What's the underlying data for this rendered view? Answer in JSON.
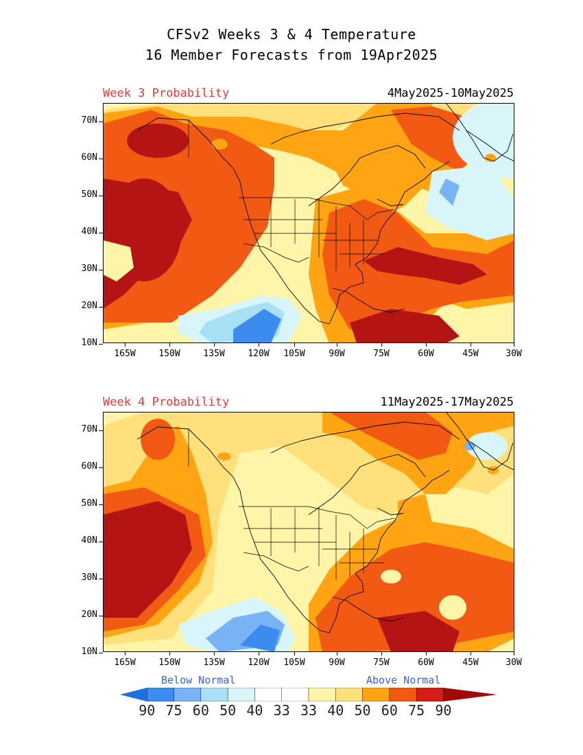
{
  "title": {
    "line1": "CFSv2 Weeks 3 & 4 Temperature",
    "line2": "16 Member Forecasts from 19Apr2025"
  },
  "panels": [
    {
      "label": "Week 3 Probability",
      "dates": "4May2025-10May2025"
    },
    {
      "label": "Week 4 Probability",
      "dates": "11May2025-17May2025"
    }
  ],
  "axes": {
    "lat_labels": [
      "70N",
      "60N",
      "50N",
      "40N",
      "30N",
      "20N",
      "10N"
    ],
    "lon_labels": [
      "165W",
      "150W",
      "135W",
      "120W",
      "105W",
      "90W",
      "75W",
      "60W",
      "45W",
      "30W"
    ],
    "lat_range": [
      10,
      75
    ],
    "lon_range": [
      -170,
      -30
    ]
  },
  "legend": {
    "below_label": "Below Normal",
    "above_label": "Above Normal",
    "values": [
      "90",
      "75",
      "60",
      "50",
      "40",
      "33",
      "33",
      "40",
      "50",
      "60",
      "75",
      "90"
    ],
    "colors": [
      "#1e6fe0",
      "#3c8cf0",
      "#78b4f5",
      "#a8e0f5",
      "#d8f6fa",
      "#ffffff",
      "#ffffff",
      "#fff5a8",
      "#ffe07a",
      "#ffa514",
      "#f25a14",
      "#d21e14",
      "#a00a0a"
    ]
  },
  "colors": {
    "above_light": "#fff5a8",
    "above_50": "#ffe07a",
    "above_60": "#ffa514",
    "above_75": "#f25a14",
    "above_90": "#b41414",
    "below_light": "#d8f6fa",
    "below_40": "#a8e0f5",
    "below_50": "#78b4f5",
    "below_60": "#3c8cf0",
    "below_75": "#1e6fe0",
    "panel_label": "#e03c3c",
    "legend_text": "#3a5fd6"
  }
}
